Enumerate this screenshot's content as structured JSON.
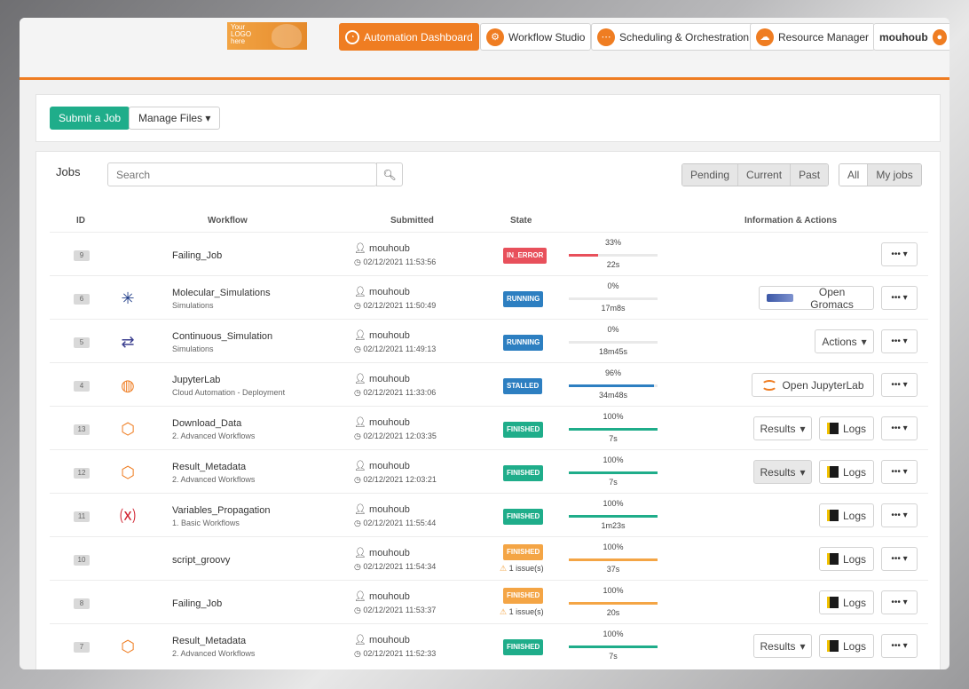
{
  "header": {
    "logo_text": "Your LOGO here",
    "tabs": [
      {
        "label": "Automation Dashboard",
        "icon": "gauge-icon",
        "active": true
      },
      {
        "label": "Workflow Studio",
        "icon": "workflow-icon",
        "active": false
      },
      {
        "label": "Scheduling & Orchestration",
        "icon": "scheduling-icon",
        "active": false
      },
      {
        "label": "Resource Manager",
        "icon": "cloud-icon",
        "active": false
      }
    ],
    "user": "mouhoub"
  },
  "toolbar": {
    "submit_label": "Submit a Job",
    "manage_files_label": "Manage Files"
  },
  "jobs": {
    "title": "Jobs",
    "search_placeholder": "Search",
    "filters": [
      "Pending",
      "Current",
      "Past"
    ],
    "scope": [
      "All",
      "My jobs"
    ],
    "columns": {
      "id": "ID",
      "workflow": "Workflow",
      "submitted": "Submitted",
      "state": "State",
      "info": "Information & Actions"
    },
    "rows": [
      {
        "id": "9",
        "icon": "none",
        "name": "Failing_Job",
        "bucket": "",
        "user": "mouhoub",
        "date": "02/12/2021 11:53:56",
        "state": "IN_ERROR",
        "state_color": "#e8505b",
        "issue": "",
        "pct": "33%",
        "progress": 0.33,
        "bar_color": "#e8505b",
        "duration": "22s",
        "actions": []
      },
      {
        "id": "6",
        "icon": "molecule-icon",
        "name": "Molecular_Simulations",
        "bucket": "Simulations",
        "user": "mouhoub",
        "date": "02/12/2021 11:50:49",
        "state": "RUNNING",
        "state_color": "#2d7fc1",
        "issue": "",
        "pct": "0%",
        "progress": 0,
        "bar_color": "#2d7fc1",
        "duration": "17m8s",
        "actions": [
          "Open Gromacs"
        ]
      },
      {
        "id": "5",
        "icon": "loop-icon",
        "name": "Continuous_Simulation",
        "bucket": "Simulations",
        "user": "mouhoub",
        "date": "02/12/2021 11:49:13",
        "state": "RUNNING",
        "state_color": "#2d7fc1",
        "issue": "",
        "pct": "0%",
        "progress": 0,
        "bar_color": "#2d7fc1",
        "duration": "18m45s",
        "actions": [
          "Actions"
        ]
      },
      {
        "id": "4",
        "icon": "jupyter-icon",
        "name": "JupyterLab",
        "bucket": "Cloud Automation - Deployment",
        "user": "mouhoub",
        "date": "02/12/2021 11:33:06",
        "state": "STALLED",
        "state_color": "#2d7fc1",
        "issue": "",
        "pct": "96%",
        "progress": 0.96,
        "bar_color": "#2d7fc1",
        "duration": "34m48s",
        "actions": [
          "Open JupyterLab"
        ]
      },
      {
        "id": "13",
        "icon": "cube-icon",
        "name": "Download_Data",
        "bucket": "2. Advanced Workflows",
        "user": "mouhoub",
        "date": "02/12/2021 12:03:35",
        "state": "FINISHED",
        "state_color": "#1fad8a",
        "issue": "",
        "pct": "100%",
        "progress": 1,
        "bar_color": "#1fad8a",
        "duration": "7s",
        "actions": [
          "Results",
          "Logs"
        ]
      },
      {
        "id": "12",
        "icon": "cube-icon",
        "name": "Result_Metadata",
        "bucket": "2. Advanced Workflows",
        "user": "mouhoub",
        "date": "02/12/2021 12:03:21",
        "state": "FINISHED",
        "state_color": "#1fad8a",
        "issue": "",
        "pct": "100%",
        "progress": 1,
        "bar_color": "#1fad8a",
        "duration": "7s",
        "actions": [
          "Results",
          "Logs"
        ]
      },
      {
        "id": "11",
        "icon": "variable-icon",
        "name": "Variables_Propagation",
        "bucket": "1. Basic Workflows",
        "user": "mouhoub",
        "date": "02/12/2021 11:55:44",
        "state": "FINISHED",
        "state_color": "#1fad8a",
        "issue": "",
        "pct": "100%",
        "progress": 1,
        "bar_color": "#1fad8a",
        "duration": "1m23s",
        "actions": [
          "Logs"
        ]
      },
      {
        "id": "10",
        "icon": "none",
        "name": "script_groovy",
        "bucket": "",
        "user": "mouhoub",
        "date": "02/12/2021 11:54:34",
        "state": "FINISHED",
        "state_color": "#f4a545",
        "issue": "1 issue(s)",
        "pct": "100%",
        "progress": 1,
        "bar_color": "#f4a545",
        "duration": "37s",
        "actions": [
          "Logs"
        ]
      },
      {
        "id": "8",
        "icon": "none",
        "name": "Failing_Job",
        "bucket": "",
        "user": "mouhoub",
        "date": "02/12/2021 11:53:37",
        "state": "FINISHED",
        "state_color": "#f4a545",
        "issue": "1 issue(s)",
        "pct": "100%",
        "progress": 1,
        "bar_color": "#f4a545",
        "duration": "20s",
        "actions": [
          "Logs"
        ]
      },
      {
        "id": "7",
        "icon": "cube-icon",
        "name": "Result_Metadata",
        "bucket": "2. Advanced Workflows",
        "user": "mouhoub",
        "date": "02/12/2021 11:52:33",
        "state": "FINISHED",
        "state_color": "#1fad8a",
        "issue": "",
        "pct": "100%",
        "progress": 1,
        "bar_color": "#1fad8a",
        "duration": "7s",
        "actions": [
          "Results",
          "Logs"
        ]
      }
    ]
  }
}
